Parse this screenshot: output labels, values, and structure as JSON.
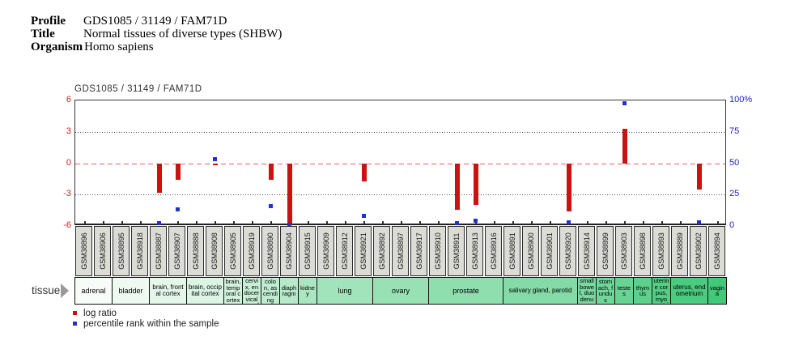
{
  "header": {
    "rows": [
      {
        "label": "Profile",
        "value": "GDS1085 / 31149 / FAM71D"
      },
      {
        "label": "Title",
        "value": "Normal tissues of diverse types (SHBW)"
      },
      {
        "label": "Organism",
        "value": "Homo sapiens"
      }
    ]
  },
  "row_label": "tissue",
  "legend": [
    {
      "label": "log ratio",
      "color": "#cc1111"
    },
    {
      "label": "percentile rank within the sample",
      "color": "#2233cc"
    }
  ],
  "chart_data": {
    "type": "bar",
    "title": "GDS1085 / 31149 / FAM71D",
    "left_axis": {
      "title": "log ratio",
      "ticks": [
        6,
        3,
        0,
        -3,
        -6
      ],
      "range": [
        -6,
        6
      ],
      "color": "#cc2222"
    },
    "right_axis": {
      "title": "percentile rank",
      "ticks": [
        "100%",
        "75",
        "50",
        "25",
        "0"
      ],
      "range": [
        0,
        100
      ],
      "color": "#2222cc"
    },
    "gridlines": {
      "dotted_at": [
        3,
        -3
      ],
      "zero_line_color": "#e06565",
      "zero_line_style": "dashed"
    },
    "bar_color": "#cc1111",
    "marker_color": "#2233cc",
    "samples": [
      "GSM38896",
      "GSM38906",
      "GSM38895",
      "GSM38918",
      "GSM38887",
      "GSM38907",
      "GSM38888",
      "GSM38908",
      "GSM38905",
      "GSM38919",
      "GSM38890",
      "GSM38904",
      "GSM38915",
      "GSM38909",
      "GSM38912",
      "GSM38921",
      "GSM38892",
      "GSM38897",
      "GSM38917",
      "GSM38910",
      "GSM38911",
      "GSM38913",
      "GSM38916",
      "GSM38891",
      "GSM38900",
      "GSM38901",
      "GSM38920",
      "GSM38914",
      "GSM38899",
      "GSM38903",
      "GSM38898",
      "GSM38893",
      "GSM38889",
      "GSM38902",
      "GSM38894"
    ],
    "log_ratio": [
      null,
      null,
      null,
      null,
      -2.8,
      -1.55,
      null,
      -0.2,
      null,
      null,
      -1.55,
      -5.9,
      null,
      null,
      null,
      -1.75,
      null,
      null,
      null,
      null,
      -4.45,
      -3.95,
      null,
      null,
      null,
      null,
      -4.6,
      null,
      null,
      3.3,
      null,
      null,
      null,
      -2.55,
      null
    ],
    "percentile_rank": [
      null,
      null,
      null,
      null,
      2,
      13,
      null,
      53,
      null,
      null,
      16,
      1,
      null,
      null,
      null,
      8,
      null,
      null,
      null,
      null,
      2,
      4,
      null,
      null,
      null,
      null,
      3,
      null,
      null,
      98,
      null,
      null,
      null,
      3,
      null
    ],
    "tissue_groups": [
      {
        "label": "adrenal",
        "span": 2,
        "color": "#f8fcf8"
      },
      {
        "label": "bladder",
        "span": 2,
        "color": "#eef9f1"
      },
      {
        "label": "brain, frontal cortex",
        "span": 2,
        "color": "#e5f7eb"
      },
      {
        "label": "brain, occipital cortex",
        "span": 2,
        "color": "#dbf4e4"
      },
      {
        "label": "brain, temporal cortex",
        "span": 1,
        "color": "#d2f1dd"
      },
      {
        "label": "cervix, endocervical canal",
        "span": 1,
        "color": "#c8eed6"
      },
      {
        "label": "colon, ascending",
        "span": 1,
        "color": "#beecd0"
      },
      {
        "label": "diaphragm",
        "span": 1,
        "color": "#b5e9c9"
      },
      {
        "label": "kidney",
        "span": 1,
        "color": "#abe6c2"
      },
      {
        "label": "lung",
        "span": 3,
        "color": "#a1e3bb"
      },
      {
        "label": "ovary",
        "span": 3,
        "color": "#98e1b5"
      },
      {
        "label": "prostate",
        "span": 4,
        "color": "#8edeae"
      },
      {
        "label": "salivary gland, parotid",
        "span": 4,
        "color": "#84dba7"
      },
      {
        "label": "small bowel, duodenum",
        "span": 1,
        "color": "#7bd8a0"
      },
      {
        "label": "stomach, fundus",
        "span": 1,
        "color": "#71d69a"
      },
      {
        "label": "testes",
        "span": 1,
        "color": "#68d393"
      },
      {
        "label": "thymus",
        "span": 1,
        "color": "#5ed08c"
      },
      {
        "label": "uterine corpus, myometrium",
        "span": 1,
        "color": "#54cd85"
      },
      {
        "label": "uterus, endometrium",
        "span": 2,
        "color": "#4bcb7f"
      },
      {
        "label": "vagina",
        "span": 1,
        "color": "#41c878"
      }
    ]
  }
}
